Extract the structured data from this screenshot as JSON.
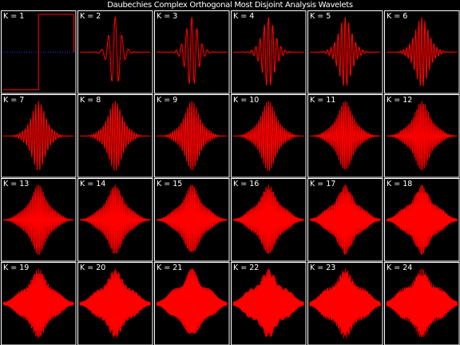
{
  "figure": {
    "title": "Daubechies Complex Orthogonal Most Disjoint Analysis Wavelets"
  },
  "colors": {
    "background": "#000000",
    "panel_border": "#ffffff",
    "real_part": "#ff0000",
    "imag_part": "#b80000",
    "zero_line": "#3030ff",
    "label_text": "#ffffff"
  },
  "chart_data": {
    "type": "line",
    "grid": false,
    "layout": "4 rows x 6 columns of small-multiple panels",
    "series_description": "each panel shows the real part (solid red) and imaginary part (dotted red) of the wavelet",
    "panels": [
      {
        "label": "K = 1",
        "K": 1
      },
      {
        "label": "K = 2",
        "K": 2
      },
      {
        "label": "K = 3",
        "K": 3
      },
      {
        "label": "K = 4",
        "K": 4
      },
      {
        "label": "K = 5",
        "K": 5
      },
      {
        "label": "K = 6",
        "K": 6
      },
      {
        "label": "K = 7",
        "K": 7
      },
      {
        "label": "K = 8",
        "K": 8
      },
      {
        "label": "K = 9",
        "K": 9
      },
      {
        "label": "K = 10",
        "K": 10
      },
      {
        "label": "K = 11",
        "K": 11
      },
      {
        "label": "K = 12",
        "K": 12
      },
      {
        "label": "K = 13",
        "K": 13
      },
      {
        "label": "K = 14",
        "K": 14
      },
      {
        "label": "K = 15",
        "K": 15
      },
      {
        "label": "K = 16",
        "K": 16
      },
      {
        "label": "K = 17",
        "K": 17
      },
      {
        "label": "K = 18",
        "K": 18
      },
      {
        "label": "K = 19",
        "K": 19
      },
      {
        "label": "K = 20",
        "K": 20
      },
      {
        "label": "K = 21",
        "K": 21
      },
      {
        "label": "K = 22",
        "K": 22
      },
      {
        "label": "K = 23",
        "K": 23
      },
      {
        "label": "K = 24",
        "K": 24
      }
    ]
  }
}
